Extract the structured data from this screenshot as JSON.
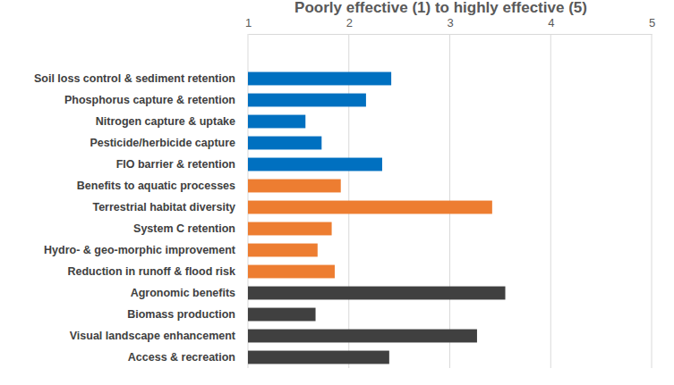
{
  "chart_data": {
    "type": "bar",
    "orientation": "horizontal",
    "title": "Poorly effective (1) to highly effective (5)",
    "categories": [
      "Soil loss control & sediment retention",
      "Phosphorus capture & retention",
      "Nitrogen capture & uptake",
      "Pesticide/herbicide capture",
      "FIO barrier & retention",
      "Benefits to aquatic processes",
      "Terrestrial habitat diversity",
      "System C retention",
      "Hydro- & geo-morphic improvement",
      "Reduction in runoff & flood risk",
      "Agronomic benefits",
      "Biomass production",
      "Visual landscape enhancement",
      "Access & recreation"
    ],
    "values": [
      2.42,
      2.17,
      1.57,
      1.73,
      2.33,
      1.92,
      3.42,
      1.83,
      1.69,
      1.86,
      3.55,
      1.67,
      3.27,
      2.4
    ],
    "colors": [
      "#0070c0",
      "#0070c0",
      "#0070c0",
      "#0070c0",
      "#0070c0",
      "#ed7d31",
      "#ed7d31",
      "#ed7d31",
      "#ed7d31",
      "#ed7d31",
      "#404040",
      "#404040",
      "#404040",
      "#404040"
    ],
    "xlim": [
      1,
      5
    ],
    "xticks": [
      1,
      2,
      3,
      4,
      5
    ],
    "grid": true
  }
}
